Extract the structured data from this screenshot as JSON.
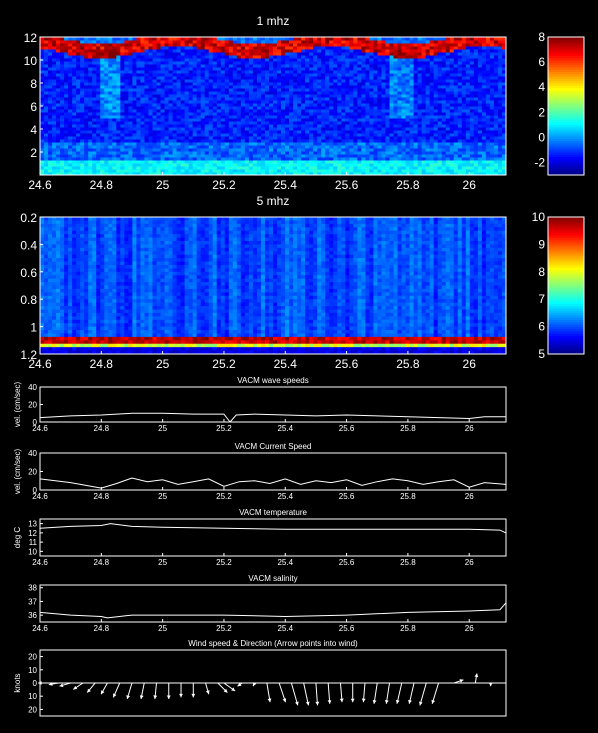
{
  "chart_data": [
    {
      "type": "heatmap",
      "title": "1 mhz",
      "xlabel": "",
      "ylabel": "",
      "xlim": [
        24.6,
        26.12
      ],
      "ylim": [
        0,
        12
      ],
      "y_reversed": false,
      "x_ticks": [
        "24.6",
        "24.8",
        "25",
        "25.2",
        "25.4",
        "25.6",
        "25.8",
        "26"
      ],
      "x_tick_values": [
        24.6,
        24.8,
        25.0,
        25.2,
        25.4,
        25.6,
        25.8,
        26.0
      ],
      "y_ticks": [
        "2",
        "4",
        "6",
        "8",
        "10",
        "12"
      ],
      "y_tick_values": [
        2,
        4,
        6,
        8,
        10,
        12
      ],
      "colorbar": {
        "min": -3,
        "max": 8,
        "ticks": [
          "-2",
          "0",
          "2",
          "4",
          "6",
          "8"
        ],
        "tick_values": [
          -2,
          0,
          2,
          4,
          6,
          8
        ]
      },
      "colormap": "jet"
    },
    {
      "type": "heatmap",
      "title": "5 mhz",
      "xlabel": "",
      "ylabel": "",
      "xlim": [
        24.6,
        26.12
      ],
      "ylim": [
        0.2,
        1.2
      ],
      "y_reversed": true,
      "x_ticks": [
        "24.6",
        "24.8",
        "25",
        "25.2",
        "25.4",
        "25.6",
        "25.8",
        "26"
      ],
      "x_tick_values": [
        24.6,
        24.8,
        25.0,
        25.2,
        25.4,
        25.6,
        25.8,
        26.0
      ],
      "y_ticks": [
        "0.2",
        "0.4",
        "0.6",
        "0.8",
        "1",
        "1.2"
      ],
      "y_tick_values": [
        0.2,
        0.4,
        0.6,
        0.8,
        1.0,
        1.2
      ],
      "colorbar": {
        "min": 5,
        "max": 10,
        "ticks": [
          "5",
          "6",
          "7",
          "8",
          "9",
          "10"
        ],
        "tick_values": [
          5,
          6,
          7,
          8,
          9,
          10
        ]
      },
      "colormap": "jet"
    },
    {
      "type": "line",
      "title": "VACM wave speeds",
      "xlabel": "",
      "ylabel": "vel. (cm/sec)",
      "xlim": [
        24.6,
        26.12
      ],
      "ylim": [
        0,
        40
      ],
      "x_ticks": [
        "24.6",
        "24.8",
        "25",
        "25.2",
        "25.4",
        "25.6",
        "25.8",
        "26"
      ],
      "x_tick_values": [
        24.6,
        24.8,
        25.0,
        25.2,
        25.4,
        25.6,
        25.8,
        26.0
      ],
      "y_ticks": [
        "0",
        "20",
        "40"
      ],
      "y_tick_values": [
        0,
        20,
        40
      ],
      "series": [
        {
          "x": [
            24.6,
            24.7,
            24.8,
            24.9,
            25.0,
            25.1,
            25.2,
            25.22,
            25.24,
            25.3,
            25.4,
            25.5,
            25.6,
            25.7,
            25.8,
            25.9,
            26.0,
            26.05,
            26.12
          ],
          "y": [
            5,
            7,
            8,
            10,
            10,
            9,
            9,
            0,
            8,
            9,
            8,
            7,
            8,
            7,
            6,
            5,
            4,
            6,
            6
          ]
        }
      ]
    },
    {
      "type": "line",
      "title": "VACM Current Speed",
      "xlabel": "",
      "ylabel": "vel. (cm/sec)",
      "xlim": [
        24.6,
        26.12
      ],
      "ylim": [
        0,
        40
      ],
      "x_ticks": [
        "24.6",
        "24.8",
        "25",
        "25.2",
        "25.4",
        "25.6",
        "25.8",
        "26"
      ],
      "x_tick_values": [
        24.6,
        24.8,
        25.0,
        25.2,
        25.4,
        25.6,
        25.8,
        26.0
      ],
      "y_ticks": [
        "0",
        "20",
        "40"
      ],
      "y_tick_values": [
        0,
        20,
        40
      ],
      "series": [
        {
          "x": [
            24.6,
            24.65,
            24.7,
            24.75,
            24.8,
            24.85,
            24.9,
            24.95,
            25.0,
            25.05,
            25.1,
            25.15,
            25.2,
            25.25,
            25.3,
            25.35,
            25.4,
            25.45,
            25.5,
            25.55,
            25.6,
            25.65,
            25.7,
            25.75,
            25.8,
            25.85,
            25.9,
            25.95,
            26.0,
            26.05,
            26.12
          ],
          "y": [
            12,
            10,
            8,
            5,
            2,
            7,
            13,
            9,
            11,
            6,
            9,
            12,
            4,
            9,
            10,
            7,
            12,
            6,
            10,
            8,
            11,
            5,
            9,
            12,
            10,
            6,
            9,
            11,
            3,
            8,
            6
          ]
        }
      ]
    },
    {
      "type": "line",
      "title": "VACM temperature",
      "xlabel": "",
      "ylabel": "deg C",
      "xlim": [
        24.6,
        26.12
      ],
      "ylim": [
        9.5,
        13.5
      ],
      "x_ticks": [
        "24.6",
        "24.8",
        "25",
        "25.2",
        "25.4",
        "25.6",
        "25.8",
        "26"
      ],
      "x_tick_values": [
        24.6,
        24.8,
        25.0,
        25.2,
        25.4,
        25.6,
        25.8,
        26.0
      ],
      "y_ticks": [
        "10",
        "11",
        "12",
        "13"
      ],
      "y_tick_values": [
        10,
        11,
        12,
        13
      ],
      "series": [
        {
          "x": [
            24.6,
            24.7,
            24.8,
            24.83,
            24.9,
            25.0,
            25.2,
            25.4,
            25.6,
            25.8,
            26.0,
            26.1,
            26.12
          ],
          "y": [
            12.5,
            12.7,
            12.8,
            13.0,
            12.7,
            12.6,
            12.5,
            12.4,
            12.4,
            12.4,
            12.4,
            12.3,
            12.0
          ]
        }
      ]
    },
    {
      "type": "line",
      "title": "VACM salinity",
      "xlabel": "",
      "ylabel": "",
      "xlim": [
        24.6,
        26.12
      ],
      "ylim": [
        35.5,
        38.2
      ],
      "x_ticks": [
        "24.6",
        "24.8",
        "25",
        "25.2",
        "25.4",
        "25.6",
        "25.8",
        "26"
      ],
      "x_tick_values": [
        24.6,
        24.8,
        25.0,
        25.2,
        25.4,
        25.6,
        25.8,
        26.0
      ],
      "y_ticks": [
        "36",
        "37",
        "38"
      ],
      "y_tick_values": [
        36,
        37,
        38
      ],
      "series": [
        {
          "x": [
            24.6,
            24.7,
            24.8,
            24.82,
            24.9,
            25.0,
            25.2,
            25.4,
            25.6,
            25.8,
            26.0,
            26.1,
            26.12
          ],
          "y": [
            36.2,
            36.0,
            35.9,
            35.8,
            36.0,
            36.0,
            36.0,
            35.9,
            36.0,
            36.2,
            36.3,
            36.4,
            36.9
          ]
        }
      ]
    },
    {
      "type": "scatter",
      "title": "Wind speed & Direction (Arrow points into wind)",
      "xlabel": "",
      "ylabel": "knots",
      "xlim": [
        24.6,
        26.12
      ],
      "ylim": [
        -25,
        25
      ],
      "x_ticks": [],
      "x_tick_values": [],
      "y_ticks": [
        "20",
        "10",
        "0",
        "10",
        "20"
      ],
      "y_tick_values": [
        20,
        10,
        0,
        -10,
        -20
      ],
      "arrows": [
        {
          "x": 24.62,
          "u": -5,
          "v": 0
        },
        {
          "x": 24.66,
          "u": -6,
          "v": -1
        },
        {
          "x": 24.7,
          "u": -7,
          "v": -2
        },
        {
          "x": 24.74,
          "u": -6,
          "v": -4
        },
        {
          "x": 24.78,
          "u": -5,
          "v": -6
        },
        {
          "x": 24.82,
          "u": -4,
          "v": -7
        },
        {
          "x": 24.86,
          "u": -4,
          "v": -9
        },
        {
          "x": 24.9,
          "u": -3,
          "v": -10
        },
        {
          "x": 24.94,
          "u": -2,
          "v": -10
        },
        {
          "x": 24.98,
          "u": -1,
          "v": -10
        },
        {
          "x": 25.02,
          "u": 0,
          "v": -10
        },
        {
          "x": 25.06,
          "u": 0,
          "v": -9
        },
        {
          "x": 25.1,
          "u": 0,
          "v": -9
        },
        {
          "x": 25.14,
          "u": 2,
          "v": -7
        },
        {
          "x": 25.18,
          "u": 6,
          "v": -6
        },
        {
          "x": 25.2,
          "u": 7,
          "v": -5
        },
        {
          "x": 25.26,
          "u": -3,
          "v": -2
        },
        {
          "x": 25.3,
          "u": -1,
          "v": -2
        },
        {
          "x": 25.34,
          "u": 2,
          "v": -12
        },
        {
          "x": 25.38,
          "u": 4,
          "v": -12
        },
        {
          "x": 25.42,
          "u": 4,
          "v": -14
        },
        {
          "x": 25.46,
          "u": 3,
          "v": -14
        },
        {
          "x": 25.5,
          "u": 1,
          "v": -14
        },
        {
          "x": 25.54,
          "u": 1,
          "v": -13
        },
        {
          "x": 25.58,
          "u": 1,
          "v": -12
        },
        {
          "x": 25.62,
          "u": 0,
          "v": -12
        },
        {
          "x": 25.66,
          "u": -1,
          "v": -12
        },
        {
          "x": 25.7,
          "u": -2,
          "v": -13
        },
        {
          "x": 25.74,
          "u": -2,
          "v": -13
        },
        {
          "x": 25.78,
          "u": -3,
          "v": -13
        },
        {
          "x": 25.82,
          "u": -3,
          "v": -13
        },
        {
          "x": 25.86,
          "u": -4,
          "v": -14
        },
        {
          "x": 25.9,
          "u": -4,
          "v": -13
        },
        {
          "x": 25.95,
          "u": 6,
          "v": 2
        },
        {
          "x": 26.02,
          "u": 1,
          "v": 6
        },
        {
          "x": 26.07,
          "u": 0,
          "v": -2
        }
      ]
    }
  ]
}
